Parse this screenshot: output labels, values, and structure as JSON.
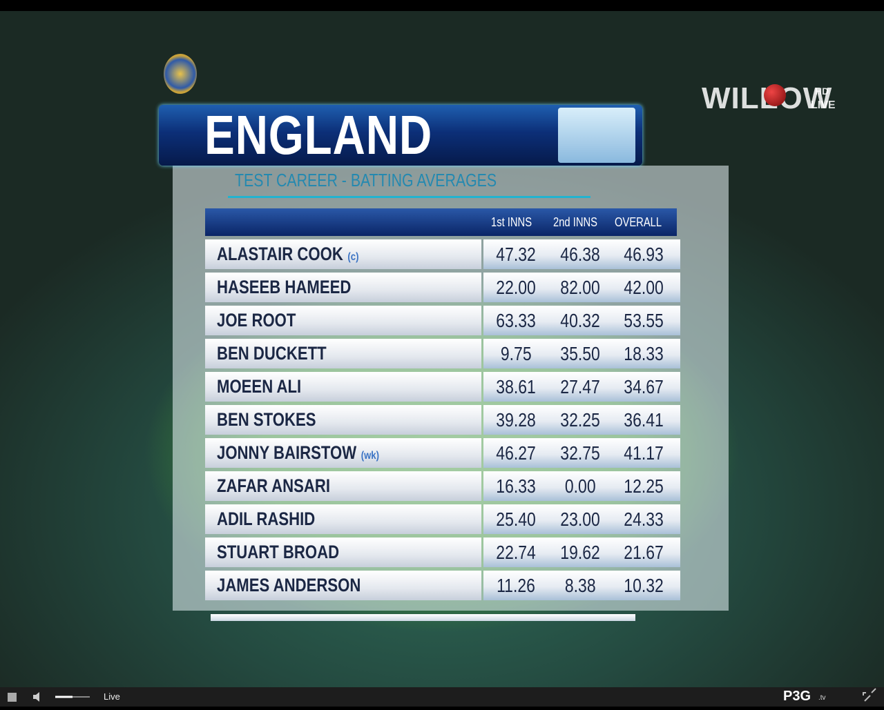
{
  "screen": {
    "top_logo": {
      "brand": "WILLOW",
      "badge_top": "HD",
      "badge_bottom": "LIVE"
    },
    "graphic": {
      "title": "ENGLAND",
      "subtitle": "TEST CAREER - BATTING AVERAGES",
      "columns": [
        "1st INNS",
        "2nd INNS",
        "OVERALL"
      ],
      "rows": [
        {
          "name": "ALASTAIR COOK",
          "tag": "(c)",
          "values": [
            "47.32",
            "46.38",
            "46.93"
          ]
        },
        {
          "name": "HASEEB HAMEED",
          "values": [
            "22.00",
            "82.00",
            "42.00"
          ]
        },
        {
          "name": "JOE ROOT",
          "values": [
            "63.33",
            "40.32",
            "53.55"
          ]
        },
        {
          "name": "BEN DUCKETT",
          "values": [
            "9.75",
            "35.50",
            "18.33"
          ]
        },
        {
          "name": "MOEEN ALI",
          "values": [
            "38.61",
            "27.47",
            "34.67"
          ]
        },
        {
          "name": "BEN STOKES",
          "values": [
            "39.28",
            "32.25",
            "36.41"
          ]
        },
        {
          "name": "JONNY BAIRSTOW",
          "tag": "(wk)",
          "values": [
            "46.27",
            "32.75",
            "41.17"
          ]
        },
        {
          "name": "ZAFAR ANSARI",
          "values": [
            "16.33",
            "0.00",
            "12.25"
          ]
        },
        {
          "name": "ADIL RASHID",
          "values": [
            "25.40",
            "23.00",
            "24.33"
          ]
        },
        {
          "name": "STUART BROAD",
          "values": [
            "22.74",
            "19.62",
            "21.67"
          ]
        },
        {
          "name": "JAMES ANDERSON",
          "values": [
            "11.26",
            "8.38",
            "10.32"
          ]
        }
      ]
    },
    "player_bar": {
      "status": "Live",
      "site": "P3G",
      "site_suffix": ".tv"
    }
  }
}
